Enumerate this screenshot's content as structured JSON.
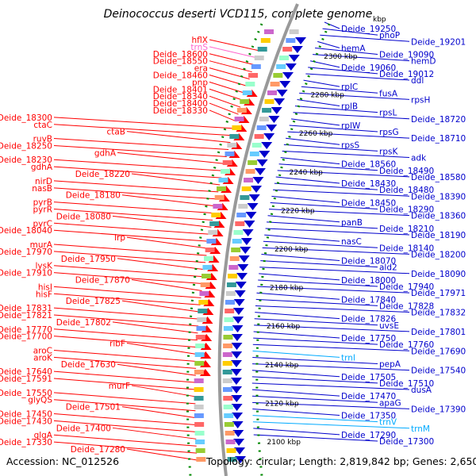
{
  "title": "Deinococcus deserti VCD115, complete genome",
  "footer": {
    "accession": "Accession: NC_012526",
    "summary": "Topology: circular; Length: 2,819,842 bp; Genes: 2,650"
  },
  "colors": {
    "forward_strand": "#ff0000",
    "reverse_strand": "#0000cc",
    "rna_genes": "#00aaff",
    "trna_pink": "#ff66cc",
    "backbone": "#999999",
    "scale_dots": "#008800"
  },
  "kbp_ticks": [
    "2300 kbp",
    "2280 kbp",
    "2260 kbp",
    "2240 kbp",
    "2220 kbp",
    "2200 kbp",
    "2180 kbp",
    "2160 kbp",
    "2140 kbp",
    "2120 kbp",
    "2100 kbp"
  ],
  "kbp_top": "kbp",
  "left_labels": [
    {
      "t": "hflX",
      "c": "red"
    },
    {
      "t": "trnS",
      "c": "pink"
    },
    {
      "t": "Deide_18600",
      "c": "red"
    },
    {
      "t": "Deide_18550",
      "c": "red"
    },
    {
      "t": "era",
      "c": "red"
    },
    {
      "t": "Deide_18460",
      "c": "red"
    },
    {
      "t": "pnp",
      "c": "red"
    },
    {
      "t": "Deide_18401",
      "c": "red"
    },
    {
      "t": "Deide_18340",
      "c": "red"
    },
    {
      "t": "Deide_18400",
      "c": "red"
    },
    {
      "t": "Deide_18330",
      "c": "red"
    },
    {
      "t": "Deide_18300",
      "c": "red"
    },
    {
      "t": "ctaC",
      "c": "red"
    },
    {
      "t": "ctaB",
      "c": "red"
    },
    {
      "t": "ruvB",
      "c": "red"
    },
    {
      "t": "Deide_18250",
      "c": "red"
    },
    {
      "t": "gdhA",
      "c": "red"
    },
    {
      "t": "Deide_18230",
      "c": "red"
    },
    {
      "t": "gdhA",
      "c": "red"
    },
    {
      "t": "Deide_18220",
      "c": "red"
    },
    {
      "t": "nirD",
      "c": "red"
    },
    {
      "t": "nasB",
      "c": "red"
    },
    {
      "t": "Deide_18180",
      "c": "red"
    },
    {
      "t": "pyrB",
      "c": "red"
    },
    {
      "t": "pyrR",
      "c": "red"
    },
    {
      "t": "Deide_18080",
      "c": "red"
    },
    {
      "t": "pyrC",
      "c": "red"
    },
    {
      "t": "Deide_18040",
      "c": "red"
    },
    {
      "t": "lrp",
      "c": "red"
    },
    {
      "t": "murA",
      "c": "red"
    },
    {
      "t": "Deide_17970",
      "c": "red"
    },
    {
      "t": "Deide_17950",
      "c": "red"
    },
    {
      "t": "lysK",
      "c": "red"
    },
    {
      "t": "Deide_17910",
      "c": "red"
    },
    {
      "t": "Deide_17870",
      "c": "red"
    },
    {
      "t": "hisI",
      "c": "red"
    },
    {
      "t": "hisF",
      "c": "red"
    },
    {
      "t": "Deide_17825",
      "c": "red"
    },
    {
      "t": "Deide_17831",
      "c": "red"
    },
    {
      "t": "Deide_17821",
      "c": "red"
    },
    {
      "t": "Deide_17802",
      "c": "red"
    },
    {
      "t": "Deide_17770",
      "c": "red"
    },
    {
      "t": "Deide_17700",
      "c": "red"
    },
    {
      "t": "ribF",
      "c": "red"
    },
    {
      "t": "aroC",
      "c": "red"
    },
    {
      "t": "aroK",
      "c": "red"
    },
    {
      "t": "Deide_17630",
      "c": "red"
    },
    {
      "t": "Deide_17640",
      "c": "red"
    },
    {
      "t": "Deide_17591",
      "c": "red"
    },
    {
      "t": "murF",
      "c": "red"
    },
    {
      "t": "Deide_17550",
      "c": "red"
    },
    {
      "t": "glyQS",
      "c": "red"
    },
    {
      "t": "Deide_17501",
      "c": "red"
    },
    {
      "t": "Deide_17450",
      "c": "red"
    },
    {
      "t": "Deide_17430",
      "c": "red"
    },
    {
      "t": "Deide_17400",
      "c": "red"
    },
    {
      "t": "glgA",
      "c": "red"
    },
    {
      "t": "Deide_17330",
      "c": "red"
    },
    {
      "t": "Deide_17280",
      "c": "red"
    }
  ],
  "right_labels": [
    {
      "t": "Deide_19250",
      "c": "blue"
    },
    {
      "t": "phoP",
      "c": "blue"
    },
    {
      "t": "Deide_19201",
      "c": "blue"
    },
    {
      "t": "hemA",
      "c": "blue"
    },
    {
      "t": "Deide_19090",
      "c": "blue"
    },
    {
      "t": "hemD",
      "c": "blue"
    },
    {
      "t": "Deide_19060",
      "c": "blue"
    },
    {
      "t": "Deide_19012",
      "c": "blue"
    },
    {
      "t": "ddl",
      "c": "blue"
    },
    {
      "t": "rplC",
      "c": "blue"
    },
    {
      "t": "fusA",
      "c": "blue"
    },
    {
      "t": "rpsH",
      "c": "blue"
    },
    {
      "t": "rplB",
      "c": "blue"
    },
    {
      "t": "rpsL",
      "c": "blue"
    },
    {
      "t": "Deide_18720",
      "c": "blue"
    },
    {
      "t": "rplW",
      "c": "blue"
    },
    {
      "t": "rpsG",
      "c": "blue"
    },
    {
      "t": "Deide_18710",
      "c": "blue"
    },
    {
      "t": "rpsS",
      "c": "blue"
    },
    {
      "t": "rpsK",
      "c": "blue"
    },
    {
      "t": "adk",
      "c": "blue"
    },
    {
      "t": "Deide_18560",
      "c": "blue"
    },
    {
      "t": "Deide_18490",
      "c": "blue"
    },
    {
      "t": "Deide_18580",
      "c": "blue"
    },
    {
      "t": "Deide_18430",
      "c": "blue"
    },
    {
      "t": "Deide_18480",
      "c": "blue"
    },
    {
      "t": "Deide_18390",
      "c": "blue"
    },
    {
      "t": "Deide_18450",
      "c": "blue"
    },
    {
      "t": "Deide_18290",
      "c": "blue"
    },
    {
      "t": "Deide_18360",
      "c": "blue"
    },
    {
      "t": "panB",
      "c": "blue"
    },
    {
      "t": "Deide_18210",
      "c": "blue"
    },
    {
      "t": "Deide_18190",
      "c": "blue"
    },
    {
      "t": "nasC",
      "c": "blue"
    },
    {
      "t": "Deide_18140",
      "c": "blue"
    },
    {
      "t": "Deide_18200",
      "c": "blue"
    },
    {
      "t": "Deide_18070",
      "c": "blue"
    },
    {
      "t": "ald2",
      "c": "blue"
    },
    {
      "t": "Deide_18090",
      "c": "blue"
    },
    {
      "t": "Deide_18000",
      "c": "blue"
    },
    {
      "t": "Deide_17940",
      "c": "blue"
    },
    {
      "t": "Deide_17971",
      "c": "blue"
    },
    {
      "t": "Deide_17840",
      "c": "blue"
    },
    {
      "t": "Deide_17828",
      "c": "blue"
    },
    {
      "t": "Deide_17832",
      "c": "blue"
    },
    {
      "t": "Deide_17826",
      "c": "blue"
    },
    {
      "t": "uvsE",
      "c": "blue"
    },
    {
      "t": "Deide_17801",
      "c": "blue"
    },
    {
      "t": "Deide_17750",
      "c": "blue"
    },
    {
      "t": "Deide_17760",
      "c": "blue"
    },
    {
      "t": "Deide_17690",
      "c": "blue"
    },
    {
      "t": "trnI",
      "c": "cyan"
    },
    {
      "t": "pepA",
      "c": "blue"
    },
    {
      "t": "Deide_17540",
      "c": "blue"
    },
    {
      "t": "Deide_17505",
      "c": "blue"
    },
    {
      "t": "Deide_17510",
      "c": "blue"
    },
    {
      "t": "dusA",
      "c": "blue"
    },
    {
      "t": "Deide_17470",
      "c": "blue"
    },
    {
      "t": "apaG",
      "c": "blue"
    },
    {
      "t": "Deide_17390",
      "c": "blue"
    },
    {
      "t": "Deide_17350",
      "c": "blue"
    },
    {
      "t": "trnV",
      "c": "cyan"
    },
    {
      "t": "trnM",
      "c": "cyan"
    },
    {
      "t": "Deide_17290",
      "c": "blue"
    },
    {
      "t": "Deide_17300",
      "c": "blue"
    }
  ]
}
